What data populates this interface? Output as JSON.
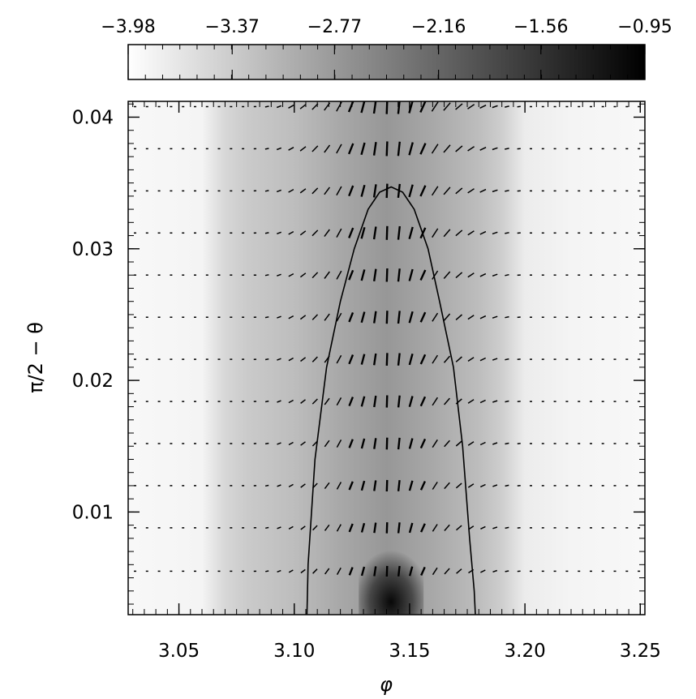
{
  "chart_data": {
    "type": "heatmap",
    "title": "",
    "xlabel": "φ",
    "ylabel": "π/2 − θ",
    "xlim": [
      3.028,
      3.252
    ],
    "ylim": [
      0.0022,
      0.0412
    ],
    "xticks": [
      3.05,
      3.1,
      3.15,
      3.2,
      3.25
    ],
    "xtick_labels": [
      "3.05",
      "3.10",
      "3.15",
      "3.20",
      "3.25"
    ],
    "yticks": [
      0.01,
      0.02,
      0.03,
      0.04
    ],
    "ytick_labels": [
      "0.01",
      "0.02",
      "0.03",
      "0.04"
    ],
    "colorbar": {
      "range": [
        -3.98,
        -0.95
      ],
      "ticks": [
        -3.98,
        -3.37,
        -2.77,
        -2.16,
        -1.56,
        -0.95
      ],
      "tick_labels": [
        "−3.98",
        "−3.37",
        "−2.77",
        "−2.16",
        "−1.56",
        "−0.95"
      ],
      "colormap": "white-to-black"
    },
    "field": {
      "description_of_pattern": "background level as function of phi; darker near phi 3.14",
      "phi": [
        3.028,
        3.06,
        3.07,
        3.08,
        3.1,
        3.12,
        3.14,
        3.16,
        3.18,
        3.19,
        3.2,
        3.22,
        3.252
      ],
      "value": [
        -3.9,
        -3.85,
        -3.5,
        -3.35,
        -3.2,
        -2.95,
        -2.75,
        -2.95,
        -3.2,
        -3.4,
        -3.75,
        -3.85,
        -3.9
      ],
      "core_peak": {
        "phi": 3.142,
        "y_top": 0.0075,
        "value": -0.95
      }
    },
    "contour": {
      "phi": [
        3.1055,
        3.106,
        3.109,
        3.114,
        3.12,
        3.126,
        3.132,
        3.137,
        3.142,
        3.147,
        3.152,
        3.158,
        3.163,
        3.169,
        3.173,
        3.176,
        3.178,
        3.1785
      ],
      "y": [
        0.0022,
        0.006,
        0.014,
        0.021,
        0.026,
        0.03,
        0.033,
        0.0343,
        0.0347,
        0.0343,
        0.033,
        0.03,
        0.026,
        0.021,
        0.015,
        0.008,
        0.004,
        0.0022
      ]
    },
    "vectors": {
      "rows_y": [
        0.0055,
        0.0088,
        0.012,
        0.0152,
        0.0184,
        0.0216,
        0.0248,
        0.028,
        0.0312,
        0.0344,
        0.0376,
        0.0408
      ],
      "spacing_phi": 0.0052,
      "center_phi": 3.142,
      "style": "short line segments, vertical near center, tilting toward horizontal away from center"
    },
    "grid": false,
    "legend": "none"
  }
}
